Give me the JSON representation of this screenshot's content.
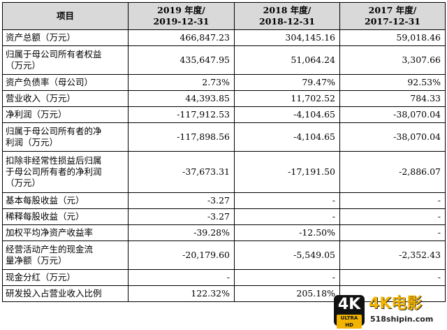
{
  "table": {
    "headers": [
      "项目",
      "2019 年度/\n2019-12-31",
      "2018 年度/\n2018-12-31",
      "2017 年度/\n2017-12-31"
    ],
    "header_lines": [
      [
        "项目"
      ],
      [
        "2019 年度/",
        "2019-12-31"
      ],
      [
        "2018 年度/",
        "2018-12-31"
      ],
      [
        "2017 年度/",
        "2017-12-31"
      ]
    ],
    "rows": [
      {
        "label": [
          "资产总额（万元）"
        ],
        "v2019": "466,847.23",
        "v2018": "304,145.16",
        "v2017": "59,018.46"
      },
      {
        "label": [
          "归属于母公司所有者权益",
          "（万元）"
        ],
        "v2019": "435,647.95",
        "v2018": "51,064.24",
        "v2017": "3,307.66"
      },
      {
        "label": [
          "资产负债率（母公司）"
        ],
        "v2019": "2.73%",
        "v2018": "79.47%",
        "v2017": "92.53%"
      },
      {
        "label": [
          "营业收入（万元）"
        ],
        "v2019": "44,393.85",
        "v2018": "11,702.52",
        "v2017": "784.33"
      },
      {
        "label": [
          "净利润（万元）"
        ],
        "v2019": "-117,912.53",
        "v2018": "-4,104.65",
        "v2017": "-38,070.04"
      },
      {
        "label": [
          "归属于母公司所有者的净",
          "利润（万元）"
        ],
        "v2019": "-117,898.56",
        "v2018": "-4,104.65",
        "v2017": "-38,070.04"
      },
      {
        "label": [
          "扣除非经常性损益后归属",
          "于母公司所有者的净利润",
          "（万元）"
        ],
        "v2019": "-37,673.31",
        "v2018": "-17,191.50",
        "v2017": "-2,886.07"
      },
      {
        "label": [
          "基本每股收益（元）"
        ],
        "v2019": "-3.27",
        "v2018": "-",
        "v2017": "-"
      },
      {
        "label": [
          "稀释每股收益（元）"
        ],
        "v2019": "-3.27",
        "v2018": "-",
        "v2017": "-"
      },
      {
        "label": [
          "加权平均净资产收益率"
        ],
        "v2019": "-39.28%",
        "v2018": "-12.50%",
        "v2017": "-"
      },
      {
        "label": [
          "经营活动产生的现金流",
          "量净额（万元）"
        ],
        "v2019": "-20,179.60",
        "v2018": "-5,549.05",
        "v2017": "-2,352.43"
      },
      {
        "label": [
          "现金分红（万元）"
        ],
        "v2019": "-",
        "v2018": "-",
        "v2017": "-"
      },
      {
        "label": [
          "研发投入占营业收入比例"
        ],
        "v2019": "122.32%",
        "v2018": "205.18%",
        "v2017": ""
      }
    ]
  },
  "watermark": {
    "badge_big": "4K",
    "badge_small": "ULTRA HD",
    "brand": "4K电影",
    "url": "518shipin.com"
  }
}
